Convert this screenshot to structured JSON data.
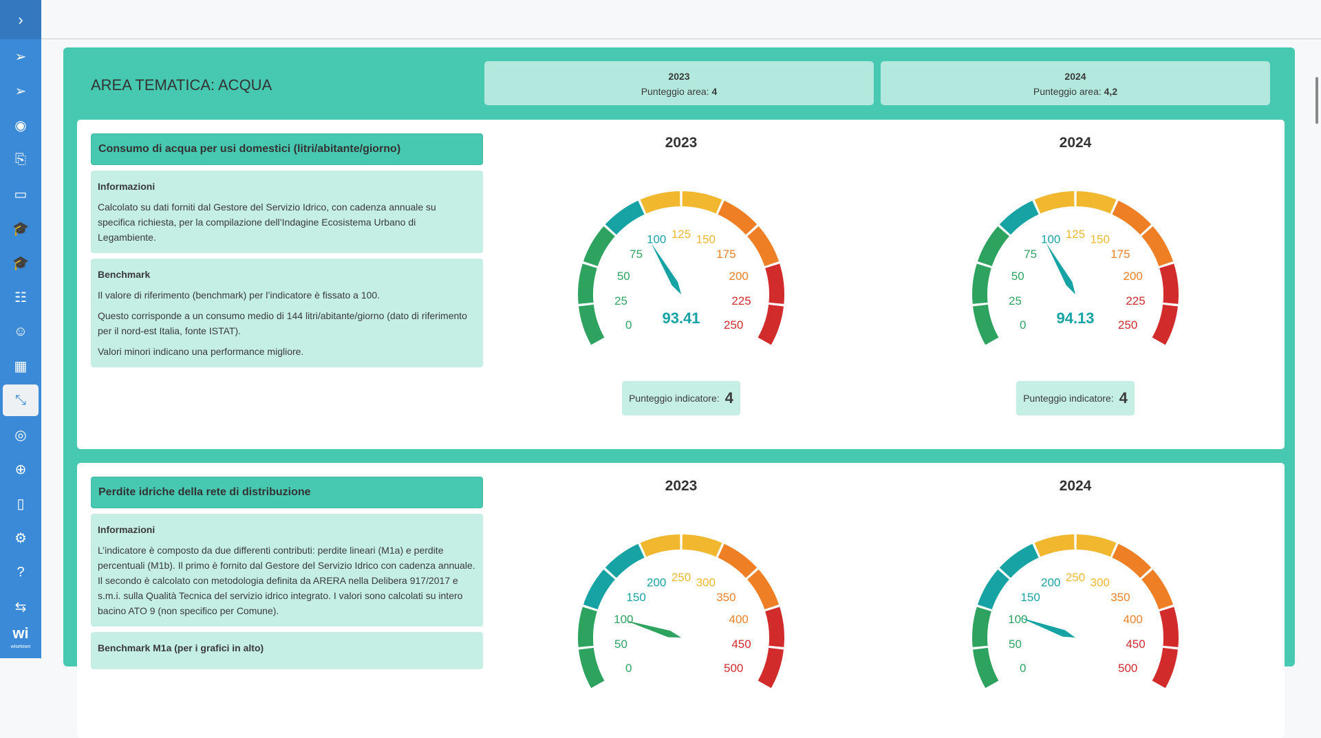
{
  "sidebar": {
    "toggle": "›",
    "items": [
      {
        "name": "send-icon",
        "glyph": "➢"
      },
      {
        "name": "send-icon-2",
        "glyph": "➢"
      },
      {
        "name": "eye-icon",
        "glyph": "◉"
      },
      {
        "name": "document-upload-icon",
        "glyph": "⎘"
      },
      {
        "name": "folder-icon",
        "glyph": "▭"
      },
      {
        "name": "graduation-cap-icon",
        "glyph": "🎓"
      },
      {
        "name": "graduation-cap-icon-2",
        "glyph": "🎓"
      },
      {
        "name": "list-icon",
        "glyph": "☷"
      },
      {
        "name": "face-icon",
        "glyph": "☺"
      },
      {
        "name": "dashboard-icon",
        "glyph": "▦"
      },
      {
        "name": "compress-icon",
        "glyph": "⤡"
      },
      {
        "name": "user-circle-icon",
        "glyph": "◎"
      },
      {
        "name": "globe-icon",
        "glyph": "⊕"
      },
      {
        "name": "devices-icon",
        "glyph": "▯"
      },
      {
        "name": "settings-icon",
        "glyph": "⚙"
      },
      {
        "name": "help-icon",
        "glyph": "?"
      },
      {
        "name": "swap-icon",
        "glyph": "⇆"
      }
    ],
    "logo": "wi",
    "logo_sub": "wisetown"
  },
  "area": {
    "title": "AREA TEMATICA: ACQUA",
    "years": [
      {
        "year": "2023",
        "label": "Punteggio area:",
        "score": "4"
      },
      {
        "year": "2024",
        "label": "Punteggio area:",
        "score": "4,2"
      }
    ]
  },
  "colors": {
    "green": "#2ea35f",
    "teal": "#17a3a3",
    "yellow": "#f0b72f",
    "orange": "#ee7f25",
    "red": "#d12b2b"
  },
  "indicators": [
    {
      "title": "Consumo di acqua per usi domestici (litri/abitante/giorno)",
      "info_title": "Informazioni",
      "info": [
        "Calcolato su dati forniti dal Gestore del Servizio Idrico, con cadenza annuale su specifica richiesta, per la compilazione dell’Indagine Ecosistema Urbano di Legambiente."
      ],
      "bench_title": "Benchmark",
      "bench": [
        "Il valore di riferimento (benchmark) per l’indicatore è fissato a 100.",
        "Questo corrisponde a un consumo medio di 144 litri/abitante/giorno (dato di riferimento per il nord-est Italia, fonte ISTAT).",
        "Valori minori indicano una performance migliore."
      ],
      "score_label": "Punteggio indicatore:"
    },
    {
      "title": "Perdite idriche della rete di distribuzione",
      "info_title": "Informazioni",
      "info": [
        "L’indicatore è composto da due differenti contributi: perdite lineari (M1a) e perdite percentuali (M1b). Il primo è fornito dal Gestore del Servizio Idrico con cadenza annuale. Il secondo è calcolato con metodologia definita da ARERA nella Delibera 917/2017 e s.m.i. sulla Qualità Tecnica del servizio idrico integrato. I valori sono calcolati su intero bacino ATO 9 (non specifico per Comune)."
      ],
      "bench_title": "Benchmark M1a (per i grafici in alto)",
      "bench": []
    }
  ],
  "chart_data": [
    {
      "type": "gauge",
      "indicator": 0,
      "title": "2023",
      "min": 0,
      "max": 250,
      "ticks": [
        0,
        25,
        50,
        75,
        100,
        125,
        150,
        175,
        200,
        225,
        250
      ],
      "zones": [
        {
          "to": 75,
          "color": "green"
        },
        {
          "to": 100,
          "color": "teal"
        },
        {
          "to": 150,
          "color": "yellow"
        },
        {
          "to": 200,
          "color": "orange"
        },
        {
          "to": 250,
          "color": "red"
        }
      ],
      "value": 93.41,
      "value_label": "93.41",
      "score": "4"
    },
    {
      "type": "gauge",
      "indicator": 0,
      "title": "2024",
      "min": 0,
      "max": 250,
      "ticks": [
        0,
        25,
        50,
        75,
        100,
        125,
        150,
        175,
        200,
        225,
        250
      ],
      "zones": [
        {
          "to": 75,
          "color": "green"
        },
        {
          "to": 100,
          "color": "teal"
        },
        {
          "to": 150,
          "color": "yellow"
        },
        {
          "to": 200,
          "color": "orange"
        },
        {
          "to": 250,
          "color": "red"
        }
      ],
      "value": 94.13,
      "value_label": "94.13",
      "score": "4"
    },
    {
      "type": "gauge",
      "indicator": 1,
      "title": "2023",
      "min": 0,
      "max": 500,
      "ticks": [
        0,
        50,
        100,
        150,
        200,
        250,
        300,
        350,
        400,
        450,
        500
      ],
      "zones": [
        {
          "to": 100,
          "color": "green"
        },
        {
          "to": 200,
          "color": "teal"
        },
        {
          "to": 300,
          "color": "yellow"
        },
        {
          "to": 400,
          "color": "orange"
        },
        {
          "to": 500,
          "color": "red"
        }
      ],
      "value": 98
    },
    {
      "type": "gauge",
      "indicator": 1,
      "title": "2024",
      "min": 0,
      "max": 500,
      "ticks": [
        0,
        50,
        100,
        150,
        200,
        250,
        300,
        350,
        400,
        450,
        500
      ],
      "zones": [
        {
          "to": 100,
          "color": "green"
        },
        {
          "to": 200,
          "color": "teal"
        },
        {
          "to": 300,
          "color": "yellow"
        },
        {
          "to": 400,
          "color": "orange"
        },
        {
          "to": 500,
          "color": "red"
        }
      ],
      "value": 104
    }
  ]
}
